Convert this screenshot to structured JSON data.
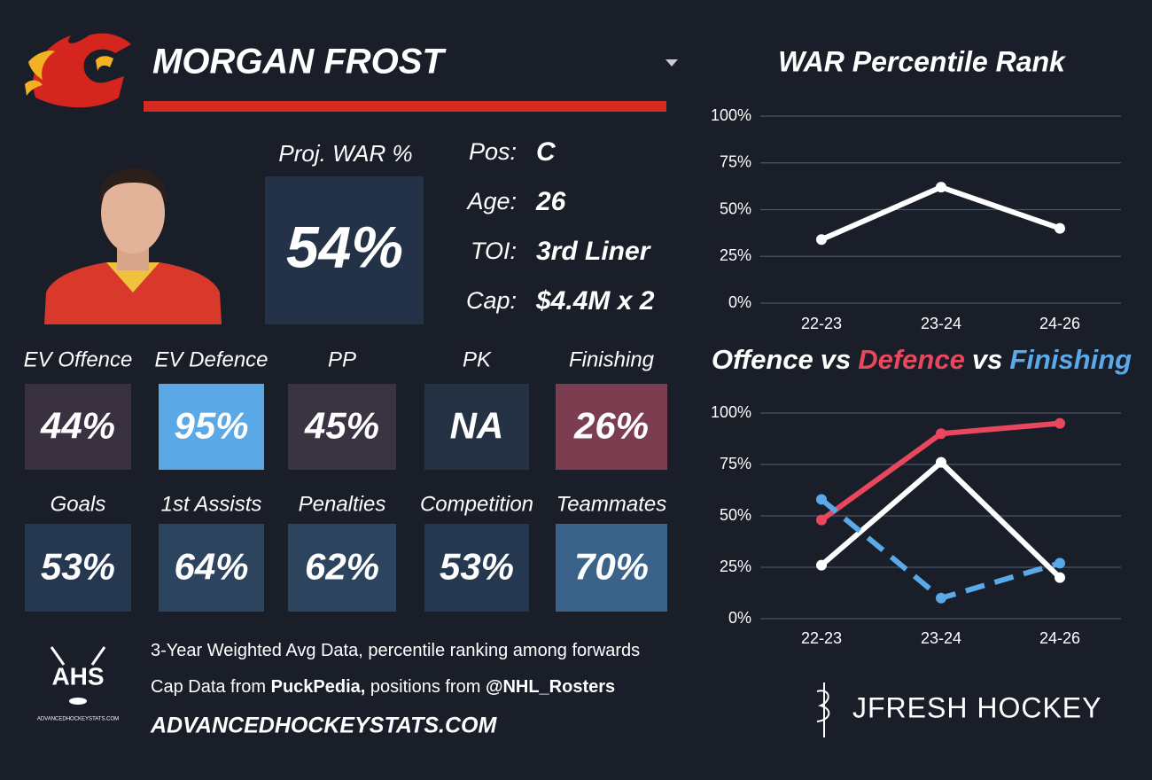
{
  "header": {
    "player_name": "MORGAN FROST"
  },
  "proj_war": {
    "label": "Proj. WAR %",
    "value": "54%"
  },
  "bio": [
    {
      "label": "Pos:",
      "value": "C"
    },
    {
      "label": "Age:",
      "value": "26"
    },
    {
      "label": "TOI:",
      "value": "3rd Liner"
    },
    {
      "label": "Cap:",
      "value": "$4.4M x 2"
    }
  ],
  "tiles": [
    [
      {
        "label": "EV Offence",
        "value": "44%",
        "color": "#3a3140"
      },
      {
        "label": "EV Defence",
        "value": "95%",
        "color": "#5aa8e6"
      },
      {
        "label": "PP",
        "value": "45%",
        "color": "#393342"
      },
      {
        "label": "PK",
        "value": "NA",
        "color": "#243243"
      },
      {
        "label": "Finishing",
        "value": "26%",
        "color": "#7c3d51"
      }
    ],
    [
      {
        "label": "Goals",
        "value": "53%",
        "color": "#263850"
      },
      {
        "label": "1st Assists",
        "value": "64%",
        "color": "#2d445f"
      },
      {
        "label": "Penalties",
        "value": "62%",
        "color": "#2d445f"
      },
      {
        "label": "Competition",
        "value": "53%",
        "color": "#263850"
      },
      {
        "label": "Teammates",
        "value": "70%",
        "color": "#3b638a"
      }
    ]
  ],
  "footer": {
    "notes": [
      [
        {
          "text": "3-Year Weighted Avg Data, percentile ranking among forwards",
          "bold": false
        }
      ],
      [
        {
          "text": "Cap Data from ",
          "bold": false
        },
        {
          "text": "PuckPedia,",
          "bold": true
        },
        {
          "text": " positions from ",
          "bold": false
        },
        {
          "text": "@NHL_Rosters",
          "bold": true
        }
      ]
    ],
    "site": "ADVANCEDHOCKEYSTATS.COM"
  },
  "logos": {
    "ahs": "AHS",
    "ahs_site": "ADVANCEDHOCKEYSTATS.COM",
    "brand": "JFRESH HOCKEY"
  },
  "chart_data": [
    {
      "type": "line",
      "title": "WAR Percentile Rank",
      "categories": [
        "22-23",
        "23-24",
        "24-26"
      ],
      "values": [
        34,
        62,
        40
      ],
      "color": "#ffffff",
      "ylim": [
        0,
        100
      ],
      "yticks": [
        {
          "value": 0,
          "label": "0%"
        },
        {
          "value": 25,
          "label": "25%"
        },
        {
          "value": 50,
          "label": "50%"
        },
        {
          "value": 75,
          "label": "75%"
        },
        {
          "value": 100,
          "label": "100%"
        }
      ],
      "grid": true
    },
    {
      "type": "line",
      "title_separator": "vs",
      "categories": [
        "22-23",
        "23-24",
        "24-26"
      ],
      "series": [
        {
          "name": "Offence",
          "color": "#ffffff",
          "values": [
            26,
            76,
            20
          ]
        },
        {
          "name": "Defence",
          "color": "#e8475e",
          "values": [
            48,
            90,
            95
          ]
        },
        {
          "name": "Finishing",
          "color": "#5aa9e8",
          "values": [
            58,
            10,
            27
          ],
          "dashed": true
        }
      ],
      "ylim": [
        0,
        100
      ],
      "yticks": [
        {
          "value": 0,
          "label": "0%"
        },
        {
          "value": 25,
          "label": "25%"
        },
        {
          "value": 50,
          "label": "50%"
        },
        {
          "value": 75,
          "label": "75%"
        },
        {
          "value": 100,
          "label": "100%"
        }
      ],
      "grid": true
    }
  ]
}
